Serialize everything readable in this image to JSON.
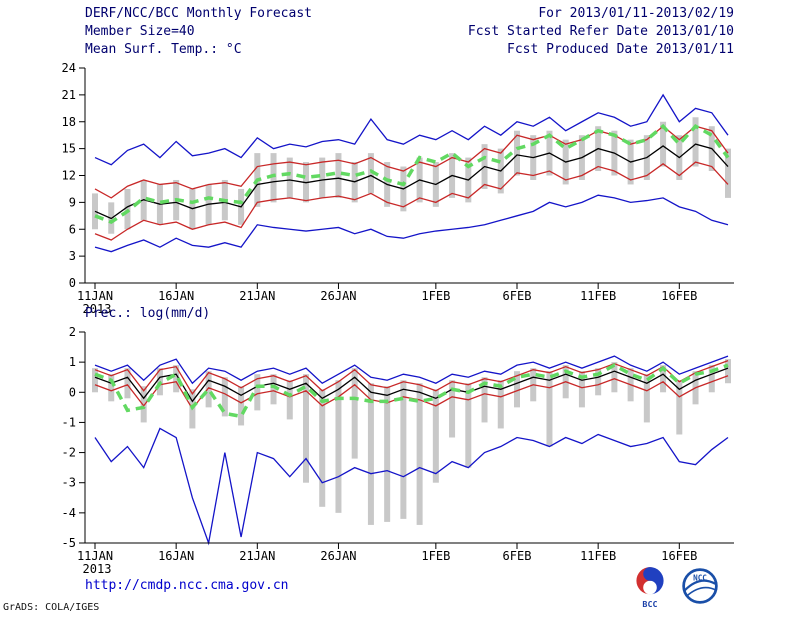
{
  "header": {
    "title": "DERF/NCC/BCC Monthly Forecast",
    "member_size": "Member Size=40",
    "for_range": "For 2013/01/11-2013/02/19",
    "fcst_refer": "Fcst Started Refer Date 2013/01/10",
    "fcst_produced": "Fcst Produced Date 2013/01/11"
  },
  "footer": {
    "url": "http://cmdp.ncc.cma.gov.cn",
    "grads_credit": "GrADS: COLA/IGES",
    "bcc_label": "BCC",
    "ncc_label": "NCC"
  },
  "colors": {
    "header_text": "#00006e",
    "url_text": "#0000cc",
    "axis": "#000000",
    "spread_bar": "#c8c8c8",
    "envelope_blue": "#1414c8",
    "std_red": "#c82828",
    "mean_black": "#000000",
    "observation_green": "#62d962"
  },
  "chart_data": [
    {
      "type": "line",
      "title": "Mean Surf. Temp.: °C",
      "ylabel": "°C",
      "ylim": [
        0,
        24
      ],
      "yticks": [
        0,
        3,
        6,
        9,
        12,
        15,
        18,
        21,
        24
      ],
      "n_points": 40,
      "x_tick_indices": [
        0,
        5,
        10,
        15,
        21,
        26,
        31,
        36
      ],
      "x_tick_labels": [
        "11JAN",
        "16JAN",
        "21JAN",
        "26JAN",
        "1FEB",
        "6FEB",
        "11FEB",
        "16FEB"
      ],
      "x_year_label": "2013",
      "grid": false,
      "legend": "none",
      "series": [
        {
          "name": "ensemble-max",
          "color": "#1414c8",
          "style": "line",
          "values": [
            14.0,
            13.2,
            14.8,
            15.5,
            14.0,
            15.8,
            14.2,
            14.5,
            15.0,
            14.0,
            16.2,
            15.0,
            15.5,
            15.2,
            15.8,
            16.0,
            15.5,
            18.3,
            16.0,
            15.5,
            16.5,
            16.0,
            17.0,
            16.0,
            17.5,
            16.5,
            18.0,
            17.5,
            18.5,
            17.0,
            18.0,
            19.0,
            18.5,
            17.5,
            18.0,
            21.0,
            18.0,
            19.5,
            19.0,
            16.5
          ]
        },
        {
          "name": "plus-std",
          "color": "#c82828",
          "style": "line",
          "values": [
            10.5,
            9.5,
            10.8,
            11.5,
            11.0,
            11.2,
            10.5,
            11.0,
            11.2,
            10.8,
            13.0,
            13.3,
            13.5,
            13.2,
            13.5,
            13.7,
            13.3,
            14.0,
            13.0,
            12.5,
            13.5,
            13.0,
            14.0,
            13.5,
            15.0,
            14.5,
            16.5,
            16.0,
            16.5,
            15.5,
            16.0,
            17.0,
            16.5,
            15.5,
            16.0,
            17.5,
            16.0,
            17.5,
            17.0,
            14.5
          ]
        },
        {
          "name": "ensemble-mean",
          "color": "#000000",
          "style": "line",
          "values": [
            8.0,
            7.2,
            8.5,
            9.3,
            8.8,
            9.0,
            8.3,
            8.8,
            9.0,
            8.5,
            11.0,
            11.3,
            11.5,
            11.2,
            11.5,
            11.7,
            11.3,
            12.0,
            11.0,
            10.5,
            11.5,
            11.0,
            12.0,
            11.5,
            13.0,
            12.5,
            14.3,
            14.0,
            14.5,
            13.5,
            14.0,
            15.0,
            14.5,
            13.5,
            14.0,
            15.3,
            14.0,
            15.5,
            15.0,
            13.0
          ]
        },
        {
          "name": "minus-std",
          "color": "#c82828",
          "style": "line",
          "values": [
            5.5,
            4.8,
            6.0,
            7.0,
            6.5,
            6.8,
            6.0,
            6.5,
            6.8,
            6.2,
            9.0,
            9.3,
            9.5,
            9.2,
            9.5,
            9.7,
            9.3,
            10.0,
            9.0,
            8.5,
            9.5,
            9.0,
            10.0,
            9.5,
            11.0,
            10.5,
            12.3,
            12.0,
            12.5,
            11.5,
            12.0,
            13.0,
            12.5,
            11.5,
            12.0,
            13.3,
            12.0,
            13.5,
            13.0,
            11.0
          ]
        },
        {
          "name": "ensemble-min",
          "color": "#1414c8",
          "style": "line",
          "values": [
            4.0,
            3.5,
            4.2,
            4.8,
            4.0,
            5.0,
            4.2,
            4.0,
            4.5,
            4.0,
            6.5,
            6.2,
            6.0,
            5.8,
            6.0,
            6.2,
            5.5,
            6.0,
            5.2,
            5.0,
            5.5,
            5.8,
            6.0,
            6.2,
            6.5,
            7.0,
            7.5,
            8.0,
            9.0,
            8.5,
            9.0,
            9.8,
            9.5,
            9.0,
            9.2,
            9.5,
            8.5,
            8.0,
            7.0,
            6.5
          ]
        },
        {
          "name": "observation",
          "color": "#62d962",
          "style": "dashed-thick",
          "values": [
            7.5,
            6.8,
            8.0,
            9.5,
            9.0,
            9.3,
            9.0,
            9.5,
            9.2,
            9.0,
            11.5,
            12.0,
            12.2,
            11.8,
            12.0,
            12.3,
            12.0,
            12.5,
            11.5,
            11.0,
            14.0,
            13.5,
            14.5,
            13.0,
            14.0,
            13.5,
            15.0,
            15.5,
            16.5,
            15.0,
            16.0,
            17.0,
            16.5,
            15.5,
            16.0,
            17.5,
            15.5,
            17.5,
            16.5,
            14.0
          ]
        }
      ],
      "bars": {
        "name": "member-spread",
        "color": "#c8c8c8",
        "low": [
          6.0,
          5.5,
          6.0,
          7.0,
          6.5,
          7.0,
          6.0,
          6.5,
          7.0,
          6.5,
          8.5,
          9.0,
          9.5,
          9.0,
          9.5,
          9.5,
          9.0,
          10.0,
          8.5,
          8.0,
          9.0,
          8.5,
          9.5,
          9.0,
          10.5,
          10.0,
          12.0,
          11.5,
          12.0,
          11.0,
          11.5,
          12.5,
          12.0,
          11.0,
          11.5,
          13.0,
          11.5,
          13.0,
          12.5,
          9.5
        ],
        "high": [
          10.0,
          9.0,
          10.5,
          11.5,
          11.0,
          11.5,
          10.5,
          11.0,
          11.5,
          10.5,
          14.5,
          14.5,
          14.0,
          13.5,
          14.0,
          14.5,
          13.5,
          14.5,
          13.5,
          13.0,
          14.0,
          13.5,
          14.5,
          14.0,
          15.5,
          15.0,
          17.0,
          16.5,
          17.0,
          16.0,
          16.5,
          17.5,
          17.0,
          16.0,
          16.5,
          18.0,
          16.5,
          18.5,
          17.5,
          15.0
        ]
      }
    },
    {
      "type": "line",
      "title": "Prec.: log(mm/d)",
      "ylabel": "log(mm/d)",
      "ylim": [
        -5,
        2
      ],
      "yticks": [
        -5,
        -4,
        -3,
        -2,
        -1,
        0,
        1,
        2
      ],
      "n_points": 40,
      "x_tick_indices": [
        0,
        5,
        10,
        15,
        21,
        26,
        31,
        36
      ],
      "x_tick_labels": [
        "11JAN",
        "16JAN",
        "21JAN",
        "26JAN",
        "1FEB",
        "6FEB",
        "11FEB",
        "16FEB"
      ],
      "x_year_label": "2013",
      "grid": false,
      "legend": "none",
      "series": [
        {
          "name": "ensemble-max",
          "color": "#1414c8",
          "style": "line",
          "values": [
            0.9,
            0.7,
            0.9,
            0.4,
            0.9,
            1.1,
            0.3,
            0.8,
            0.7,
            0.4,
            0.7,
            0.8,
            0.6,
            0.8,
            0.3,
            0.6,
            0.9,
            0.5,
            0.4,
            0.6,
            0.5,
            0.3,
            0.6,
            0.5,
            0.7,
            0.6,
            0.9,
            1.0,
            0.8,
            1.0,
            0.8,
            1.0,
            1.2,
            0.9,
            0.7,
            1.0,
            0.6,
            0.8,
            1.0,
            1.2
          ]
        },
        {
          "name": "plus-std",
          "color": "#c82828",
          "style": "line",
          "values": [
            0.75,
            0.55,
            0.75,
            0.05,
            0.75,
            0.85,
            -0.05,
            0.65,
            0.45,
            0.15,
            0.45,
            0.55,
            0.35,
            0.55,
            0.05,
            0.35,
            0.75,
            0.25,
            0.15,
            0.35,
            0.25,
            0.05,
            0.35,
            0.25,
            0.45,
            0.35,
            0.55,
            0.75,
            0.65,
            0.85,
            0.65,
            0.75,
            0.95,
            0.75,
            0.55,
            0.85,
            0.35,
            0.65,
            0.85,
            1.05
          ]
        },
        {
          "name": "ensemble-mean",
          "color": "#000000",
          "style": "line",
          "values": [
            0.5,
            0.3,
            0.5,
            -0.2,
            0.5,
            0.6,
            -0.3,
            0.4,
            0.2,
            -0.1,
            0.2,
            0.3,
            0.1,
            0.3,
            -0.2,
            0.1,
            0.5,
            0.0,
            -0.1,
            0.1,
            0.0,
            -0.2,
            0.1,
            0.0,
            0.2,
            0.1,
            0.3,
            0.5,
            0.4,
            0.6,
            0.4,
            0.5,
            0.7,
            0.5,
            0.3,
            0.6,
            0.1,
            0.4,
            0.6,
            0.8
          ]
        },
        {
          "name": "minus-std",
          "color": "#c82828",
          "style": "line",
          "values": [
            0.25,
            0.05,
            0.25,
            -0.45,
            0.25,
            0.35,
            -0.55,
            0.15,
            -0.05,
            -0.35,
            -0.05,
            0.05,
            -0.15,
            0.05,
            -0.45,
            -0.15,
            0.25,
            -0.25,
            -0.35,
            -0.15,
            -0.25,
            -0.45,
            -0.15,
            -0.25,
            -0.05,
            -0.15,
            0.05,
            0.25,
            0.15,
            0.35,
            0.15,
            0.25,
            0.45,
            0.25,
            0.05,
            0.35,
            -0.15,
            0.15,
            0.35,
            0.55
          ]
        },
        {
          "name": "ensemble-min",
          "color": "#1414c8",
          "style": "line",
          "values": [
            -1.5,
            -2.3,
            -1.8,
            -2.5,
            -1.2,
            -1.5,
            -3.5,
            -5.0,
            -2.0,
            -4.8,
            -2.0,
            -2.2,
            -2.8,
            -2.2,
            -3.0,
            -2.8,
            -2.5,
            -2.7,
            -2.6,
            -2.8,
            -2.5,
            -2.7,
            -2.3,
            -2.5,
            -2.0,
            -1.8,
            -1.5,
            -1.6,
            -1.8,
            -1.5,
            -1.7,
            -1.4,
            -1.6,
            -1.8,
            -1.7,
            -1.5,
            -2.3,
            -2.4,
            -1.9,
            -1.5
          ]
        },
        {
          "name": "observation",
          "color": "#62d962",
          "style": "dashed-thick",
          "values": [
            0.6,
            0.4,
            -0.6,
            -0.5,
            0.3,
            0.6,
            -0.5,
            0.1,
            -0.7,
            -0.8,
            0.2,
            0.2,
            -0.1,
            0.2,
            -0.3,
            -0.2,
            -0.2,
            -0.3,
            -0.3,
            -0.2,
            -0.3,
            -0.2,
            0.1,
            0.0,
            0.3,
            0.2,
            0.5,
            0.6,
            0.5,
            0.7,
            0.5,
            0.6,
            0.9,
            0.6,
            0.4,
            0.8,
            0.3,
            0.6,
            0.7,
            0.9
          ]
        }
      ],
      "bars": {
        "name": "member-spread",
        "color": "#c8c8c8",
        "low": [
          0.0,
          -0.3,
          -0.2,
          -1.0,
          -0.1,
          0.0,
          -1.2,
          -0.5,
          -0.8,
          -1.1,
          -0.6,
          -0.4,
          -0.9,
          -3.0,
          -3.8,
          -4.0,
          -2.2,
          -4.4,
          -4.3,
          -4.2,
          -4.4,
          -3.0,
          -1.5,
          -2.5,
          -1.0,
          -1.2,
          -0.5,
          -0.3,
          -1.8,
          -0.2,
          -0.5,
          -0.1,
          0.0,
          -0.3,
          -1.0,
          0.0,
          -1.4,
          -0.4,
          0.0,
          0.3
        ],
        "high": [
          0.8,
          0.6,
          0.8,
          0.2,
          0.8,
          0.9,
          0.1,
          0.7,
          0.5,
          0.2,
          0.6,
          0.6,
          0.4,
          0.6,
          0.1,
          0.4,
          0.8,
          0.3,
          0.2,
          0.4,
          0.3,
          0.1,
          0.4,
          0.3,
          0.5,
          0.4,
          0.7,
          0.8,
          0.7,
          0.9,
          0.7,
          0.8,
          1.0,
          0.8,
          0.6,
          0.9,
          0.4,
          0.7,
          0.9,
          1.1
        ]
      }
    }
  ]
}
